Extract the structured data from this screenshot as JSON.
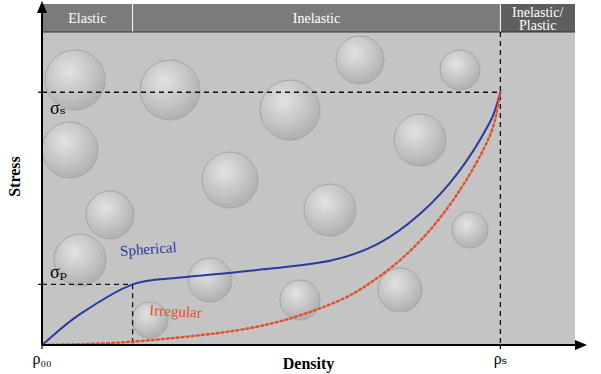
{
  "chart_data": {
    "type": "line",
    "x_label": "Density",
    "y_label": "Stress",
    "xlim": [
      0,
      1
    ],
    "ylim": [
      0,
      1
    ],
    "xticks": [
      {
        "value": 0,
        "label": "ρ₀₀"
      },
      {
        "value": 0.86,
        "label": "ρₛ"
      }
    ],
    "yticks": [
      {
        "value": 0.18,
        "label": "σₚ"
      },
      {
        "value": 0.75,
        "label": "σₛ"
      }
    ],
    "tick_labels": true,
    "regions": [
      {
        "label": "Elastic",
        "from": 0,
        "to": 0.17
      },
      {
        "label": "Inelastic",
        "from": 0.17,
        "to": 0.86
      },
      {
        "label": "Inelastic/ Plastic",
        "from": 0.86,
        "to": 1
      }
    ],
    "series": [
      {
        "name": "Spherical",
        "color": "#2a3a9e",
        "line_style": "solid",
        "x": [
          0,
          0.07,
          0.17,
          0.26,
          0.39,
          0.54,
          0.63,
          0.71,
          0.78,
          0.84,
          0.86
        ],
        "values": [
          0,
          0.09,
          0.18,
          0.2,
          0.22,
          0.25,
          0.3,
          0.39,
          0.51,
          0.66,
          0.75
        ]
      },
      {
        "name": "Irregular",
        "color": "#e2502a",
        "line_style": "dotted",
        "x": [
          0,
          0.17,
          0.39,
          0.54,
          0.63,
          0.71,
          0.78,
          0.84,
          0.86
        ],
        "values": [
          0,
          0.01,
          0.05,
          0.12,
          0.2,
          0.31,
          0.45,
          0.62,
          0.75
        ]
      }
    ]
  }
}
